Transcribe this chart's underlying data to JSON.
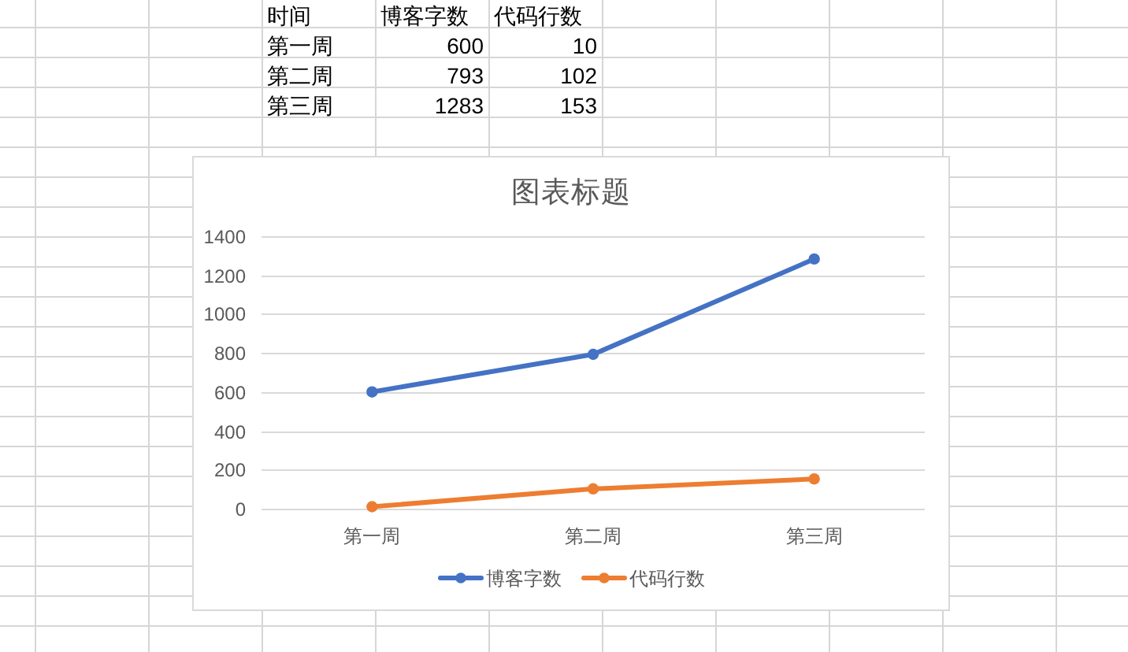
{
  "chart_data": [
    {
      "type": "other",
      "annotations": [
        "时间",
        "博客字数",
        "代码行数",
        "第一周",
        "600",
        "10",
        "第二周",
        "793",
        "102",
        "第三周",
        "1283",
        "153"
      ]
    },
    {
      "type": "line",
      "title": "图表标题",
      "categories": [
        "第一周",
        "第二周",
        "第三周"
      ],
      "series": [
        {
          "name": "博客字数",
          "color": "#4472c4",
          "values": [
            600,
            793,
            1283
          ]
        },
        {
          "name": "代码行数",
          "color": "#ed7d31",
          "values": [
            10,
            102,
            153
          ]
        }
      ],
      "ylim": [
        0,
        1400
      ],
      "yticks": [
        0,
        200,
        400,
        600,
        800,
        1000,
        1200,
        1400
      ],
      "grid": "y",
      "legend": "bottom",
      "marker": "circle",
      "line_style": "solid"
    }
  ]
}
